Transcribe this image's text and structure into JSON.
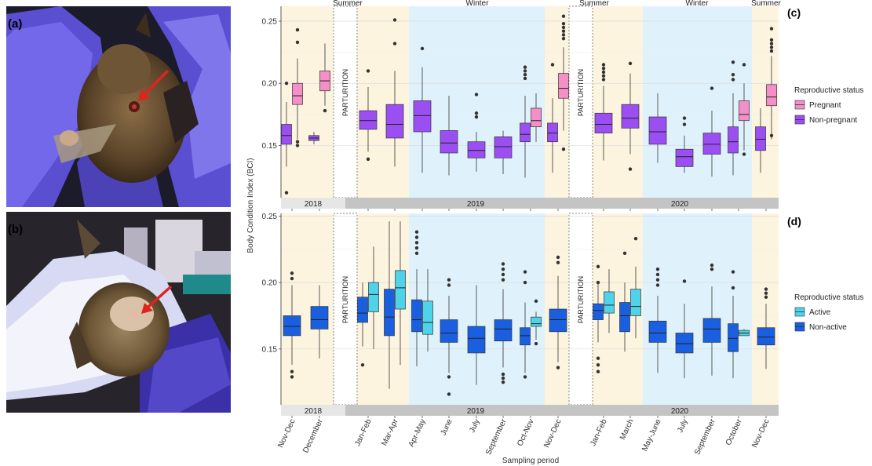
{
  "figure": {
    "panel_labels": {
      "a": "(a)",
      "b": "(b)",
      "c": "(c)",
      "d": "(d)"
    },
    "y_axis_label": "Body Condition Index (BCI)",
    "x_axis_label": "Sampling period",
    "parturition_label": "PARTURITION",
    "colors": {
      "pregnant": "#f48fc8",
      "non_pregnant": "#9b4ff2",
      "active": "#4fd3ea",
      "non_active": "#1a5fe0",
      "summer_band": "#fcf4df",
      "winter_band": "#dff2fb",
      "year_strip_2018": "#e6e6e6",
      "year_strip_rest": "#c4c4c4",
      "arrow": "#e0231c"
    }
  },
  "photos": [
    {
      "panel": "a",
      "description_icon": "bat-photo-icon"
    },
    {
      "panel": "b",
      "description_icon": "bat-photo-icon"
    }
  ],
  "chart_data": [
    {
      "type": "box",
      "panel": "(c)",
      "ylabel": "Body Condition Index (BCI)",
      "ylim": [
        0.108,
        0.262
      ],
      "yticks": [
        0.15,
        0.2,
        0.25
      ],
      "ytick_labels": [
        "0.15",
        "0.20",
        "0.25"
      ],
      "categories": [
        "Nov-Dec",
        "December",
        "Jan-Feb",
        "Mar-Apr",
        "Apr-May",
        "June",
        "July",
        "September",
        "Oct-Nov",
        "Nov-Dec",
        "Jan-Feb",
        "March",
        "May-June",
        "July",
        "September",
        "October",
        "Nov-Dec"
      ],
      "season_labels": [
        "Summer",
        "Winter",
        "Summer",
        "Winter",
        "Summer"
      ],
      "year_labels": [
        "2018",
        "2019",
        "2020"
      ],
      "legend": {
        "title": "Reproductive status",
        "entries": [
          "Pregnant",
          "Non-pregnant"
        ],
        "position": "right"
      },
      "boxes": [
        {
          "cat": 0,
          "status": "non-pregnant",
          "q1": 0.151,
          "med": 0.158,
          "q3": 0.167,
          "lo": 0.133,
          "hi": 0.185,
          "out": [
            0.112,
            0.2
          ]
        },
        {
          "cat": 0,
          "status": "pregnant",
          "q1": 0.183,
          "med": 0.19,
          "q3": 0.2,
          "lo": 0.155,
          "hi": 0.22,
          "out": [
            0.243,
            0.233,
            0.15,
            0.153
          ]
        },
        {
          "cat": 1,
          "status": "non-pregnant",
          "q1": 0.154,
          "med": 0.156,
          "q3": 0.158,
          "lo": 0.151,
          "hi": 0.161,
          "out": []
        },
        {
          "cat": 1,
          "status": "pregnant",
          "q1": 0.194,
          "med": 0.202,
          "q3": 0.21,
          "lo": 0.182,
          "hi": 0.232,
          "out": [
            0.178
          ]
        },
        {
          "cat": 2,
          "status": "non-pregnant",
          "q1": 0.163,
          "med": 0.17,
          "q3": 0.178,
          "lo": 0.145,
          "hi": 0.197,
          "out": [
            0.21,
            0.139
          ]
        },
        {
          "cat": 3,
          "status": "non-pregnant",
          "q1": 0.156,
          "med": 0.167,
          "q3": 0.183,
          "lo": 0.133,
          "hi": 0.21,
          "out": [
            0.251,
            0.232
          ]
        },
        {
          "cat": 4,
          "status": "non-pregnant",
          "q1": 0.161,
          "med": 0.174,
          "q3": 0.186,
          "lo": 0.128,
          "hi": 0.213,
          "out": [
            0.228
          ]
        },
        {
          "cat": 5,
          "status": "non-pregnant",
          "q1": 0.144,
          "med": 0.152,
          "q3": 0.162,
          "lo": 0.126,
          "hi": 0.19,
          "out": []
        },
        {
          "cat": 6,
          "status": "non-pregnant",
          "q1": 0.14,
          "med": 0.146,
          "q3": 0.153,
          "lo": 0.129,
          "hi": 0.161,
          "out": [
            0.191,
            0.176,
            0.173
          ]
        },
        {
          "cat": 7,
          "status": "non-pregnant",
          "q1": 0.14,
          "med": 0.149,
          "q3": 0.157,
          "lo": 0.127,
          "hi": 0.162,
          "out": []
        },
        {
          "cat": 8,
          "status": "non-pregnant",
          "q1": 0.153,
          "med": 0.159,
          "q3": 0.168,
          "lo": 0.124,
          "hi": 0.19,
          "out": [
            0.213,
            0.21,
            0.207,
            0.204
          ]
        },
        {
          "cat": 8,
          "status": "pregnant",
          "q1": 0.165,
          "med": 0.17,
          "q3": 0.18,
          "lo": 0.153,
          "hi": 0.192,
          "out": []
        },
        {
          "cat": 9,
          "status": "non-pregnant",
          "q1": 0.153,
          "med": 0.16,
          "q3": 0.168,
          "lo": 0.128,
          "hi": 0.188,
          "out": [
            0.215
          ]
        },
        {
          "cat": 9,
          "status": "pregnant",
          "q1": 0.188,
          "med": 0.196,
          "q3": 0.208,
          "lo": 0.162,
          "hi": 0.229,
          "out": [
            0.254,
            0.248,
            0.245,
            0.242,
            0.239,
            0.236,
            0.147
          ]
        },
        {
          "cat": 10,
          "status": "non-pregnant",
          "q1": 0.16,
          "med": 0.167,
          "q3": 0.176,
          "lo": 0.138,
          "hi": 0.198,
          "out": [
            0.215,
            0.212,
            0.209,
            0.206,
            0.203
          ]
        },
        {
          "cat": 11,
          "status": "non-pregnant",
          "q1": 0.164,
          "med": 0.172,
          "q3": 0.183,
          "lo": 0.143,
          "hi": 0.208,
          "out": [
            0.216,
            0.131
          ]
        },
        {
          "cat": 12,
          "status": "non-pregnant",
          "q1": 0.151,
          "med": 0.161,
          "q3": 0.173,
          "lo": 0.136,
          "hi": 0.192,
          "out": []
        },
        {
          "cat": 13,
          "status": "non-pregnant",
          "q1": 0.133,
          "med": 0.141,
          "q3": 0.147,
          "lo": 0.128,
          "hi": 0.158,
          "out": [
            0.172,
            0.167
          ]
        },
        {
          "cat": 14,
          "status": "non-pregnant",
          "q1": 0.143,
          "med": 0.151,
          "q3": 0.16,
          "lo": 0.125,
          "hi": 0.178,
          "out": [
            0.196
          ]
        },
        {
          "cat": 15,
          "status": "non-pregnant",
          "q1": 0.144,
          "med": 0.153,
          "q3": 0.165,
          "lo": 0.126,
          "hi": 0.192,
          "out": [
            0.217,
            0.207,
            0.203
          ]
        },
        {
          "cat": 15,
          "status": "pregnant",
          "q1": 0.17,
          "med": 0.175,
          "q3": 0.186,
          "lo": 0.146,
          "hi": 0.2,
          "out": [
            0.215,
            0.143
          ]
        },
        {
          "cat": 16,
          "status": "non-pregnant",
          "q1": 0.146,
          "med": 0.155,
          "q3": 0.165,
          "lo": 0.128,
          "hi": 0.18,
          "out": []
        },
        {
          "cat": 16,
          "status": "pregnant",
          "q1": 0.182,
          "med": 0.189,
          "q3": 0.199,
          "lo": 0.155,
          "hi": 0.222,
          "out": [
            0.244,
            0.235,
            0.232,
            0.229,
            0.226,
            0.158
          ]
        }
      ]
    },
    {
      "type": "box",
      "panel": "(d)",
      "ylabel": "Body Condition Index (BCI)",
      "xlabel": "Sampling period",
      "ylim": [
        0.108,
        0.252
      ],
      "yticks": [
        0.15,
        0.2,
        0.25
      ],
      "ytick_labels": [
        "0.15",
        "0.20",
        "0.25"
      ],
      "categories": [
        "Nov-Dec",
        "December",
        "Jan-Feb",
        "Mar-Apr",
        "Apr-May",
        "June",
        "July",
        "September",
        "Oct-Nov",
        "Nov-Dec",
        "Jan-Feb",
        "March",
        "May-June",
        "July",
        "September",
        "October",
        "Nov-Dec"
      ],
      "year_labels": [
        "2018",
        "2019",
        "2020"
      ],
      "legend": {
        "title": "Reproductive status",
        "entries": [
          "Active",
          "Non-active"
        ],
        "position": "right"
      },
      "boxes": [
        {
          "cat": 0,
          "status": "non-active",
          "q1": 0.16,
          "med": 0.167,
          "q3": 0.175,
          "lo": 0.138,
          "hi": 0.198,
          "out": [
            0.207,
            0.203,
            0.133,
            0.129
          ]
        },
        {
          "cat": 1,
          "status": "non-active",
          "q1": 0.165,
          "med": 0.172,
          "q3": 0.182,
          "lo": 0.143,
          "hi": 0.198,
          "out": []
        },
        {
          "cat": 2,
          "status": "non-active",
          "q1": 0.17,
          "med": 0.177,
          "q3": 0.189,
          "lo": 0.152,
          "hi": 0.2,
          "out": [
            0.138
          ]
        },
        {
          "cat": 2,
          "status": "active",
          "q1": 0.178,
          "med": 0.191,
          "q3": 0.2,
          "lo": 0.15,
          "hi": 0.227,
          "out": []
        },
        {
          "cat": 3,
          "status": "non-active",
          "q1": 0.16,
          "med": 0.174,
          "q3": 0.195,
          "lo": 0.12,
          "hi": 0.246,
          "out": []
        },
        {
          "cat": 3,
          "status": "active",
          "q1": 0.18,
          "med": 0.196,
          "q3": 0.209,
          "lo": 0.138,
          "hi": 0.246,
          "out": []
        },
        {
          "cat": 4,
          "status": "non-active",
          "q1": 0.163,
          "med": 0.172,
          "q3": 0.187,
          "lo": 0.137,
          "hi": 0.21,
          "out": [
            0.238,
            0.234,
            0.23,
            0.226,
            0.222
          ]
        },
        {
          "cat": 4,
          "status": "active",
          "q1": 0.161,
          "med": 0.17,
          "q3": 0.186,
          "lo": 0.148,
          "hi": 0.21,
          "out": []
        },
        {
          "cat": 5,
          "status": "non-active",
          "q1": 0.155,
          "med": 0.162,
          "q3": 0.172,
          "lo": 0.132,
          "hi": 0.19,
          "out": [
            0.202,
            0.198,
            0.129,
            0.116
          ]
        },
        {
          "cat": 6,
          "status": "non-active",
          "q1": 0.147,
          "med": 0.158,
          "q3": 0.167,
          "lo": 0.123,
          "hi": 0.198,
          "out": []
        },
        {
          "cat": 7,
          "status": "non-active",
          "q1": 0.156,
          "med": 0.165,
          "q3": 0.172,
          "lo": 0.136,
          "hi": 0.195,
          "out": [
            0.214,
            0.21,
            0.206,
            0.202,
            0.131,
            0.128,
            0.125
          ]
        },
        {
          "cat": 8,
          "status": "non-active",
          "q1": 0.153,
          "med": 0.16,
          "q3": 0.166,
          "lo": 0.132,
          "hi": 0.185,
          "out": [
            0.208,
            0.2,
            0.129
          ]
        },
        {
          "cat": 8,
          "status": "active",
          "q1": 0.167,
          "med": 0.169,
          "q3": 0.174,
          "lo": 0.157,
          "hi": 0.178,
          "out": [
            0.186,
            0.154
          ]
        },
        {
          "cat": 9,
          "status": "non-active",
          "q1": 0.163,
          "med": 0.172,
          "q3": 0.18,
          "lo": 0.14,
          "hi": 0.205,
          "out": [
            0.219,
            0.215,
            0.136
          ]
        },
        {
          "cat": 10,
          "status": "non-active",
          "q1": 0.172,
          "med": 0.179,
          "q3": 0.184,
          "lo": 0.155,
          "hi": 0.2,
          "out": [
            0.212,
            0.2,
            0.143,
            0.138,
            0.133
          ]
        },
        {
          "cat": 10,
          "status": "active",
          "q1": 0.177,
          "med": 0.183,
          "q3": 0.193,
          "lo": 0.162,
          "hi": 0.21,
          "out": []
        },
        {
          "cat": 11,
          "status": "non-active",
          "q1": 0.163,
          "med": 0.175,
          "q3": 0.185,
          "lo": 0.148,
          "hi": 0.2,
          "out": [
            0.222
          ]
        },
        {
          "cat": 11,
          "status": "active",
          "q1": 0.175,
          "med": 0.182,
          "q3": 0.195,
          "lo": 0.158,
          "hi": 0.212,
          "out": [
            0.233
          ]
        },
        {
          "cat": 12,
          "status": "non-active",
          "q1": 0.155,
          "med": 0.162,
          "q3": 0.171,
          "lo": 0.132,
          "hi": 0.19,
          "out": [
            0.21,
            0.206,
            0.202,
            0.198
          ]
        },
        {
          "cat": 13,
          "status": "non-active",
          "q1": 0.147,
          "med": 0.154,
          "q3": 0.162,
          "lo": 0.128,
          "hi": 0.184,
          "out": [
            0.201
          ]
        },
        {
          "cat": 14,
          "status": "non-active",
          "q1": 0.155,
          "med": 0.165,
          "q3": 0.173,
          "lo": 0.13,
          "hi": 0.197,
          "out": [
            0.213,
            0.21
          ]
        },
        {
          "cat": 15,
          "status": "non-active",
          "q1": 0.148,
          "med": 0.158,
          "q3": 0.169,
          "lo": 0.128,
          "hi": 0.19,
          "out": [
            0.208,
            0.196
          ]
        },
        {
          "cat": 15,
          "status": "active",
          "q1": 0.16,
          "med": 0.162,
          "q3": 0.164,
          "lo": 0.16,
          "hi": 0.165,
          "out": []
        },
        {
          "cat": 16,
          "status": "non-active",
          "q1": 0.153,
          "med": 0.159,
          "q3": 0.166,
          "lo": 0.135,
          "hi": 0.184,
          "out": [
            0.195,
            0.192,
            0.189
          ]
        }
      ]
    }
  ]
}
